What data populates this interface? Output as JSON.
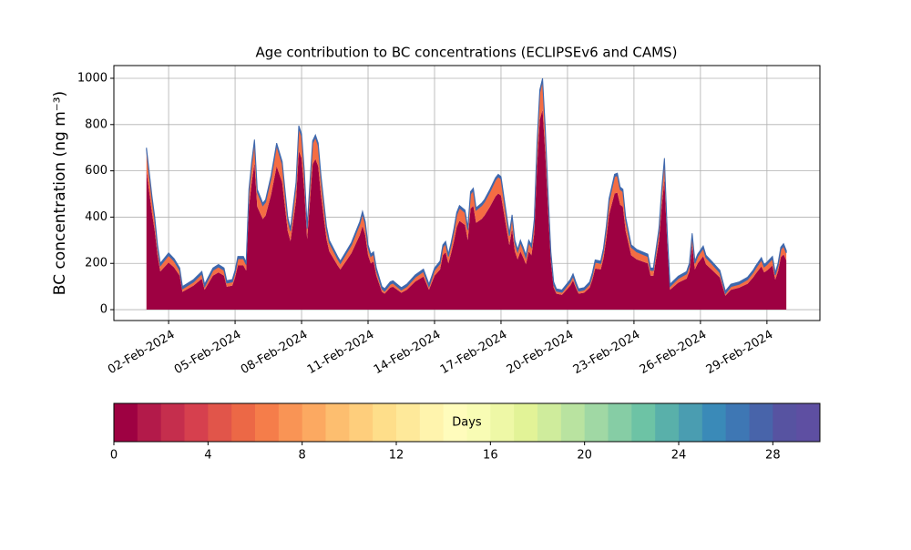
{
  "chart_data": {
    "type": "stackedarea",
    "title": "Age contribution to BC concentrations (ECLIPSEv6 and CAMS)",
    "y_label": "BC concentration (ng m⁻³)",
    "grid": true,
    "xlim": [
      -0.47,
      31.39
    ],
    "ylim": [
      -47,
      1055
    ],
    "yticks": [
      0,
      200,
      400,
      600,
      800,
      1000
    ],
    "xticks": [
      {
        "value": 2,
        "label": "02-Feb-2024"
      },
      {
        "value": 5,
        "label": "05-Feb-2024"
      },
      {
        "value": 8,
        "label": "08-Feb-2024"
      },
      {
        "value": 11,
        "label": "11-Feb-2024"
      },
      {
        "value": 14,
        "label": "14-Feb-2024"
      },
      {
        "value": 17,
        "label": "17-Feb-2024"
      },
      {
        "value": 20,
        "label": "20-Feb-2024"
      },
      {
        "value": 23,
        "label": "23-Feb-2024"
      },
      {
        "value": 26,
        "label": "26-Feb-2024"
      },
      {
        "value": 29,
        "label": "29-Feb-2024"
      }
    ],
    "x": [
      1,
      1.25,
      1.375,
      1.5,
      1.625,
      2,
      2.25,
      2.5,
      2.625,
      3.125,
      3.5,
      3.625,
      4,
      4.25,
      4.5,
      4.625,
      4.875,
      5,
      5.125,
      5.375,
      5.5,
      5.625,
      5.75,
      5.875,
      6,
      6.25,
      6.375,
      6.625,
      6.875,
      7.125,
      7.375,
      7.5,
      7.75,
      7.875,
      8,
      8.125,
      8.25,
      8.5,
      8.625,
      8.75,
      8.875,
      9.125,
      9.25,
      9.625,
      9.75,
      10.25,
      10.625,
      10.75,
      10.875,
      11,
      11.125,
      11.25,
      11.375,
      11.625,
      11.75,
      12,
      12.125,
      12.25,
      12.5,
      12.75,
      13.125,
      13.5,
      13.75,
      14,
      14.25,
      14.375,
      14.5,
      14.625,
      14.75,
      14.875,
      15,
      15.125,
      15.375,
      15.5,
      15.625,
      15.75,
      15.875,
      16.125,
      16.25,
      16.5,
      16.75,
      16.875,
      17,
      17.25,
      17.375,
      17.5,
      17.625,
      17.75,
      17.875,
      18,
      18.125,
      18.25,
      18.375,
      18.5,
      18.625,
      18.75,
      18.875,
      19,
      19.125,
      19.25,
      19.375,
      19.5,
      19.75,
      19.875,
      20.125,
      20.25,
      20.375,
      20.5,
      20.75,
      21,
      21.125,
      21.25,
      21.5,
      21.625,
      21.75,
      21.875,
      22.125,
      22.25,
      22.375,
      22.5,
      22.625,
      22.875,
      23.125,
      23.625,
      23.75,
      23.875,
      24.125,
      24.25,
      24.375,
      24.5,
      24.625,
      25,
      25.375,
      25.5,
      25.625,
      25.75,
      25.875,
      26.125,
      26.25,
      26.5,
      26.875,
      27.125,
      27.375,
      27.75,
      28.125,
      28.375,
      28.5,
      28.75,
      28.875,
      29,
      29.25,
      29.375,
      29.5,
      29.625,
      29.75,
      29.875
    ],
    "series": [
      {
        "color": "#9e0142",
        "values": [
          602,
          419,
          340,
          235,
          165,
          204,
          182,
          147,
          77,
          104,
          134,
          86,
          147,
          161,
          147,
          99,
          104,
          139,
          191,
          191,
          169,
          445,
          550,
          633,
          445,
          392,
          406,
          497,
          620,
          550,
          340,
          296,
          471,
          686,
          655,
          515,
          305,
          629,
          651,
          620,
          497,
          305,
          252,
          191,
          174,
          244,
          322,
          362,
          322,
          235,
          200,
          209,
          147,
          77,
          69,
          95,
          99,
          91,
          73,
          86,
          121,
          143,
          86,
          147,
          174,
          235,
          248,
          200,
          244,
          296,
          357,
          384,
          366,
          301,
          436,
          449,
          375,
          392,
          406,
          445,
          489,
          502,
          493,
          349,
          279,
          349,
          252,
          217,
          252,
          226,
          196,
          252,
          235,
          331,
          620,
          821,
          865,
          672,
          427,
          209,
          95,
          69,
          64,
          77,
          104,
          126,
          95,
          69,
          73,
          95,
          130,
          178,
          174,
          222,
          305,
          410,
          502,
          506,
          454,
          445,
          340,
          235,
          217,
          200,
          147,
          147,
          296,
          445,
          563,
          287,
          86,
          117,
          134,
          165,
          279,
          174,
          200,
          231,
          196,
          174,
          139,
          60,
          86,
          95,
          112,
          139,
          156,
          187,
          161,
          169,
          191,
          130,
          165,
          226,
          239,
          213
        ]
      },
      {
        "color": "#f46d43",
        "values": [
          88,
          61,
          50,
          35,
          25,
          31,
          28,
          23,
          13,
          16,
          21,
          14,
          23,
          24,
          23,
          16,
          16,
          21,
          29,
          29,
          26,
          65,
          80,
          92,
          65,
          58,
          59,
          73,
          90,
          80,
          50,
          44,
          69,
          99,
          95,
          75,
          45,
          91,
          94,
          90,
          73,
          45,
          38,
          29,
          26,
          36,
          48,
          53,
          48,
          35,
          30,
          31,
          23,
          13,
          11,
          15,
          16,
          14,
          12,
          14,
          19,
          22,
          14,
          23,
          26,
          35,
          37,
          30,
          36,
          44,
          53,
          56,
          54,
          44,
          64,
          66,
          55,
          58,
          59,
          65,
          71,
          73,
          72,
          51,
          41,
          51,
          38,
          33,
          38,
          34,
          29,
          38,
          35,
          49,
          90,
          119,
          125,
          98,
          63,
          31,
          15,
          11,
          11,
          13,
          16,
          19,
          15,
          11,
          12,
          15,
          20,
          27,
          26,
          33,
          45,
          60,
          73,
          74,
          66,
          65,
          50,
          35,
          33,
          30,
          23,
          23,
          44,
          65,
          82,
          43,
          14,
          18,
          21,
          25,
          41,
          26,
          30,
          34,
          29,
          26,
          21,
          10,
          14,
          15,
          18,
          21,
          24,
          28,
          24,
          26,
          29,
          20,
          25,
          34,
          36,
          32
        ]
      },
      {
        "color": "#3f68ad",
        "values": [
          10,
          10,
          10,
          10,
          10,
          10,
          10,
          10,
          10,
          10,
          10,
          10,
          10,
          10,
          10,
          10,
          10,
          10,
          10,
          10,
          10,
          10,
          10,
          10,
          10,
          10,
          10,
          10,
          10,
          10,
          10,
          10,
          10,
          10,
          10,
          10,
          10,
          10,
          10,
          10,
          10,
          10,
          10,
          10,
          10,
          10,
          10,
          10,
          10,
          10,
          10,
          10,
          10,
          10,
          10,
          10,
          10,
          10,
          10,
          10,
          10,
          10,
          10,
          10,
          10,
          10,
          10,
          10,
          10,
          10,
          10,
          10,
          10,
          10,
          10,
          10,
          10,
          10,
          10,
          10,
          10,
          10,
          10,
          10,
          10,
          10,
          10,
          10,
          10,
          10,
          10,
          10,
          10,
          10,
          10,
          10,
          10,
          10,
          10,
          10,
          10,
          10,
          10,
          10,
          10,
          10,
          10,
          10,
          10,
          10,
          10,
          10,
          10,
          10,
          10,
          10,
          10,
          10,
          10,
          10,
          10,
          10,
          10,
          10,
          10,
          10,
          10,
          10,
          10,
          10,
          10,
          10,
          10,
          10,
          10,
          10,
          10,
          10,
          10,
          10,
          10,
          10,
          10,
          10,
          10,
          10,
          10,
          10,
          10,
          10,
          10,
          10,
          10,
          10,
          10,
          10
        ]
      }
    ],
    "colorbar": {
      "label": "Days",
      "lim": [
        0,
        30
      ],
      "ticks": [
        0,
        4,
        8,
        12,
        16,
        20,
        24,
        28
      ],
      "colors": [
        "#9e0142",
        "#b31a4a",
        "#c52e4d",
        "#d6404e",
        "#e1554a",
        "#ec6846",
        "#f57d4a",
        "#f99455",
        "#fca961",
        "#fdbe6f",
        "#fece7c",
        "#fede8a",
        "#fee99a",
        "#fff4ad",
        "#fffcbc",
        "#f8fcb4",
        "#eef8a6",
        "#e2f397",
        "#cfec9c",
        "#b9e3a0",
        "#a0d8a4",
        "#86cda5",
        "#6dc3a5",
        "#59b0aa",
        "#4a9db1",
        "#3a8ab8",
        "#3e77b4",
        "#4864aa",
        "#5753a1",
        "#5e4fa2"
      ]
    }
  }
}
